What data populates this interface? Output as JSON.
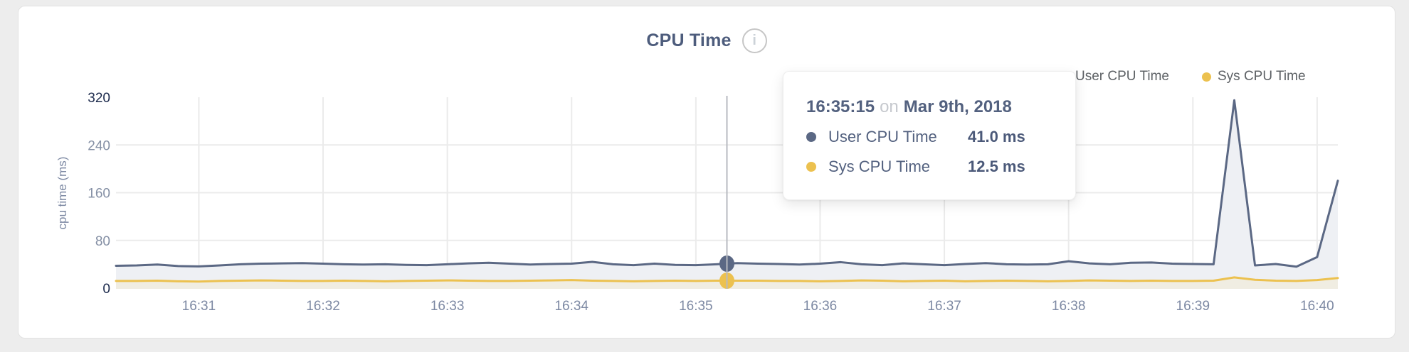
{
  "header": {
    "title": "CPU Time",
    "info_icon": "i"
  },
  "legend": [
    {
      "label": "User CPU Time",
      "color": "#5b6884"
    },
    {
      "label": "Sys CPU Time",
      "color": "#ecc14f"
    }
  ],
  "chart_data": {
    "type": "line",
    "title": "CPU Time",
    "xlabel": "",
    "ylabel": "cpu time (ms)",
    "ylim": [
      0,
      320
    ],
    "y_ticks": [
      0,
      80,
      160,
      240,
      320
    ],
    "x_ticks": [
      "16:31",
      "16:32",
      "16:33",
      "16:34",
      "16:35",
      "16:36",
      "16:37",
      "16:38",
      "16:39",
      "16:40"
    ],
    "start_time": "16:30:20",
    "sample_interval_seconds": 10,
    "grid": true,
    "legend_position": "top-right",
    "grid_color": "#ebebeb",
    "hover_line_color": "#b7bac0",
    "axis_label_color_major": "#1d2b4d",
    "axis_label_color_minor": "#8590a5",
    "x_label_color": "#7d89a3",
    "series": [
      {
        "name": "User CPU Time",
        "color": "#5b6884",
        "fill": "#eef0f4",
        "values": [
          37.5,
          38,
          39.5,
          37,
          36.5,
          38,
          40,
          41,
          41.5,
          42,
          41,
          40,
          39.5,
          40,
          39,
          38.5,
          40,
          41.5,
          42.5,
          41,
          39.5,
          40.5,
          41,
          44,
          40,
          38.5,
          41,
          39,
          38.5,
          40,
          42,
          41,
          40.5,
          39.5,
          41,
          43.5,
          40,
          38.5,
          41.5,
          40,
          38.5,
          40.5,
          42,
          40,
          39.5,
          40,
          45,
          41.5,
          40,
          42.5,
          43,
          41,
          40.5,
          40,
          315,
          38,
          40.5,
          36,
          52,
          180
        ]
      },
      {
        "name": "Sys CPU Time",
        "color": "#ecc14f",
        "fill": "#f0ede2",
        "values": [
          12,
          12,
          12.5,
          11.5,
          11,
          12,
          12.5,
          13,
          12.5,
          12,
          12,
          12.5,
          12,
          11.5,
          12,
          12.5,
          13,
          12.5,
          12,
          12,
          12.5,
          13,
          13.5,
          12.5,
          12,
          11.5,
          12,
          12.5,
          12,
          12.5,
          12.5,
          12.5,
          12,
          12,
          11.5,
          12,
          13,
          12.5,
          11.5,
          12,
          12.5,
          11.5,
          12,
          12.5,
          12,
          11.5,
          12,
          13,
          12.5,
          12,
          12.5,
          12,
          12,
          12.5,
          18,
          14,
          12.5,
          12,
          13.5,
          17
        ]
      }
    ]
  },
  "tooltip": {
    "time": "16:35:15",
    "connector": "on",
    "date": "Mar 9th, 2018",
    "rows": [
      {
        "label": "User CPU Time",
        "value": "41.0 ms",
        "color": "#5b6884"
      },
      {
        "label": "Sys CPU Time",
        "value": "12.5 ms",
        "color": "#ecc14f"
      }
    ]
  }
}
